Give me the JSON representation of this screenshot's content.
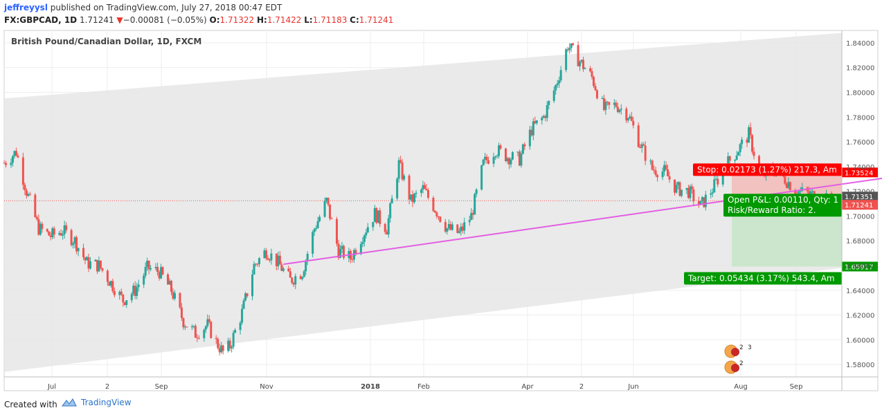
{
  "header": {
    "author": "jeffreyysl",
    "published": "published on TradingView.com, July 27, 2018 00:47 EDT",
    "symbol": "FX:GBPCAD, 1D",
    "last": "1.71241",
    "change_arrow": "▼",
    "change": "−0.00081 (−0.05%)",
    "open_label": "O:",
    "open": "1.71322",
    "high_label": "H:",
    "high": "1.71422",
    "low_label": "L:",
    "low": "1.71183",
    "close_label": "C:",
    "close": "1.71241"
  },
  "chart_title": "British Pound/Canadian Dollar, 1D, FXCM",
  "footer": {
    "created_with": "Created with",
    "brand": "TradingView"
  },
  "colors": {
    "up": "#26a69a",
    "down": "#ef5350",
    "channel": "#e6e6e6",
    "trendline": "#e35ee3",
    "stop_zone": "#f2b8b5",
    "target_zone": "#c8e6c9",
    "label_red": "#ff0000",
    "label_green": "#009900"
  },
  "chart_data": {
    "type": "candlestick",
    "title": "British Pound/Canadian Dollar, 1D, FXCM",
    "symbol": "FX:GBPCAD",
    "timeframe": "1D",
    "ylim": [
      1.57,
      1.85
    ],
    "y_ticks": [
      "1.84000",
      "1.82000",
      "1.80000",
      "1.78000",
      "1.76000",
      "1.74000",
      "1.72000",
      "1.70000",
      "1.68000",
      "1.66000",
      "1.64000",
      "1.62000",
      "1.60000",
      "1.58000"
    ],
    "x_ticks": [
      "Jul",
      "2",
      "Sep",
      "Nov",
      "2018",
      "Feb",
      "Apr",
      "2",
      "Jun",
      "Aug",
      "Sep"
    ],
    "x_range": [
      "2017-06-01",
      "2018-09-30"
    ],
    "close_path": [
      [
        "2017-06-01",
        1.743
      ],
      [
        "2017-06-08",
        1.752
      ],
      [
        "2017-06-14",
        1.72
      ],
      [
        "2017-06-21",
        1.69
      ],
      [
        "2017-06-28",
        1.684
      ],
      [
        "2017-07-05",
        1.688
      ],
      [
        "2017-07-12",
        1.68
      ],
      [
        "2017-07-19",
        1.662
      ],
      [
        "2017-07-26",
        1.66
      ],
      [
        "2017-08-02",
        1.646
      ],
      [
        "2017-08-09",
        1.632
      ],
      [
        "2017-08-16",
        1.64
      ],
      [
        "2017-08-23",
        1.658
      ],
      [
        "2017-08-30",
        1.655
      ],
      [
        "2017-09-06",
        1.64
      ],
      [
        "2017-09-13",
        1.615
      ],
      [
        "2017-09-20",
        1.605
      ],
      [
        "2017-09-27",
        1.612
      ],
      [
        "2017-10-02",
        1.598
      ],
      [
        "2017-10-06",
        1.59
      ],
      [
        "2017-10-10",
        1.595
      ],
      [
        "2017-10-17",
        1.622
      ],
      [
        "2017-10-24",
        1.66
      ],
      [
        "2017-10-31",
        1.672
      ],
      [
        "2017-11-07",
        1.662
      ],
      [
        "2017-11-14",
        1.648
      ],
      [
        "2017-11-21",
        1.655
      ],
      [
        "2017-11-28",
        1.69
      ],
      [
        "2017-12-05",
        1.712
      ],
      [
        "2017-12-12",
        1.672
      ],
      [
        "2017-12-19",
        1.666
      ],
      [
        "2017-12-26",
        1.685
      ],
      [
        "2018-01-02",
        1.702
      ],
      [
        "2018-01-09",
        1.69
      ],
      [
        "2018-01-16",
        1.742
      ],
      [
        "2018-01-23",
        1.712
      ],
      [
        "2018-01-30",
        1.722
      ],
      [
        "2018-02-06",
        1.706
      ],
      [
        "2018-02-13",
        1.69
      ],
      [
        "2018-02-20",
        1.686
      ],
      [
        "2018-02-27",
        1.7
      ],
      [
        "2018-03-06",
        1.742
      ],
      [
        "2018-03-13",
        1.754
      ],
      [
        "2018-03-20",
        1.748
      ],
      [
        "2018-03-27",
        1.746
      ],
      [
        "2018-04-03",
        1.77
      ],
      [
        "2018-04-10",
        1.78
      ],
      [
        "2018-04-17",
        1.805
      ],
      [
        "2018-04-24",
        1.838
      ],
      [
        "2018-05-01",
        1.825
      ],
      [
        "2018-05-08",
        1.812
      ],
      [
        "2018-05-15",
        1.786
      ],
      [
        "2018-05-22",
        1.79
      ],
      [
        "2018-05-29",
        1.782
      ],
      [
        "2018-06-05",
        1.758
      ],
      [
        "2018-06-12",
        1.738
      ],
      [
        "2018-06-19",
        1.736
      ],
      [
        "2018-06-26",
        1.722
      ],
      [
        "2018-07-03",
        1.72
      ],
      [
        "2018-07-10",
        1.708
      ],
      [
        "2018-07-17",
        1.722
      ],
      [
        "2018-07-24",
        1.74
      ],
      [
        "2018-07-31",
        1.752
      ],
      [
        "2018-08-07",
        1.766
      ],
      [
        "2018-08-14",
        1.732
      ],
      [
        "2018-08-21",
        1.738
      ],
      [
        "2018-08-28",
        1.73
      ],
      [
        "2018-09-04",
        1.72
      ],
      [
        "2018-09-11",
        1.718
      ],
      [
        "2018-09-18",
        1.714
      ],
      [
        "2018-09-25",
        1.71241
      ]
    ],
    "channel": {
      "upper": [
        [
          "2017-06-01",
          1.795
        ],
        [
          "2018-09-30",
          1.848
        ]
      ],
      "lower": [
        [
          "2017-06-01",
          1.574
        ],
        [
          "2018-09-30",
          1.658
        ]
      ]
    },
    "trendline": [
      [
        "2017-11-10",
        1.661
      ],
      [
        "2018-11-05",
        1.733
      ]
    ],
    "position": {
      "entry": 1.71351,
      "stop": 1.73524,
      "target": 1.65917,
      "current": 1.71241
    },
    "price_labels": [
      {
        "value": "1.73524",
        "color": "#ff0000"
      },
      {
        "value": "1.71351",
        "color": "#555555"
      },
      {
        "value": "1.71241",
        "color": "#ef5350"
      },
      {
        "value": "1.65917",
        "color": "#009900"
      }
    ],
    "annotations": {
      "stop": "Stop: 0.02173 (1.27%) 217.3, Am",
      "pnl": "Open P&L: 0.00110, Qty: 1",
      "rr": "Risk/Reward Ratio: 2.",
      "target": "Target: 0.05434 (3.17%) 543.4, Am"
    },
    "events": [
      {
        "flags": [
          "uk-flag-icon",
          "ca-flag-icon"
        ],
        "count": "2",
        "count2": "3"
      },
      {
        "flags": [
          "ca-flag-icon"
        ],
        "count": "2"
      }
    ]
  }
}
